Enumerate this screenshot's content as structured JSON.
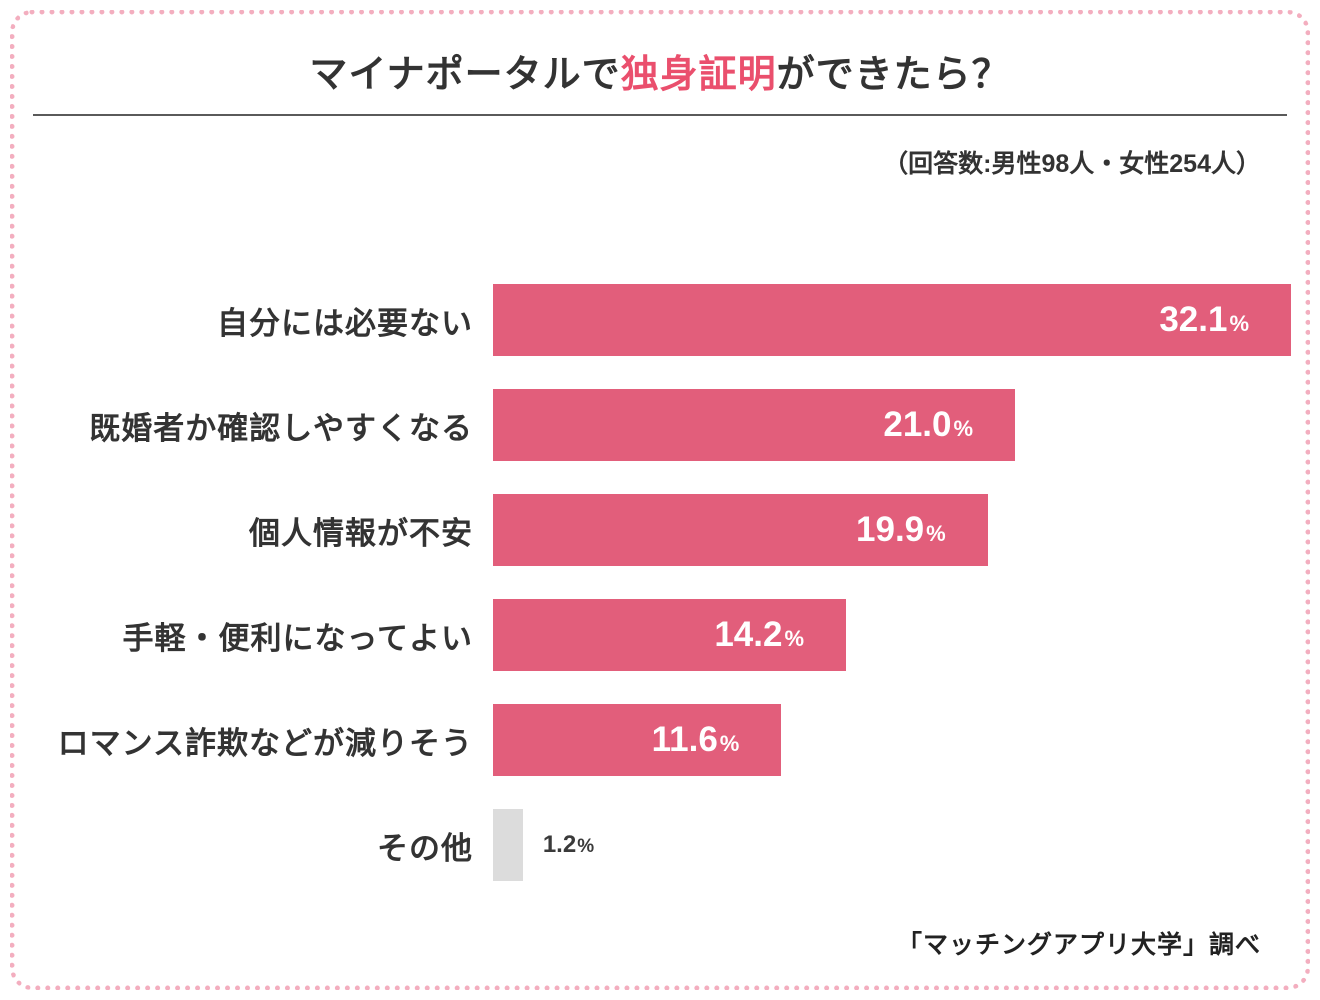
{
  "page": {
    "title_prefix": "マイナポータルで",
    "title_highlight": "独身証明",
    "title_suffix": "ができたら？",
    "subtitle": "（回答数:男性98人・女性254人）",
    "source": "「マッチングアプリ大学」調べ",
    "highlight_color": "#ea4f6d",
    "bar_color": "#e25e7b",
    "muted_bar_color": "#dcdcdc"
  },
  "chart_data": {
    "type": "bar",
    "orientation": "horizontal",
    "title": "マイナポータルで独身証明ができたら？",
    "subtitle": "（回答数:男性98人・女性254人）",
    "source": "「マッチングアプリ大学」調べ",
    "categories": [
      "自分には必要ない",
      "既婚者か確認しやすくなる",
      "個人情報が不安",
      "手軽・便利になってよい",
      "ロマンス詐欺などが減りそう",
      "その他"
    ],
    "values": [
      32.1,
      21.0,
      19.9,
      14.2,
      11.6,
      1.2
    ],
    "unit": "%",
    "bar_colors": [
      "#e25e7b",
      "#e25e7b",
      "#e25e7b",
      "#e25e7b",
      "#e25e7b",
      "#dcdcdc"
    ],
    "xlim": [
      0,
      32.1
    ],
    "grid": false,
    "legend": false,
    "value_label_position": "inside-right (outside for その他)"
  }
}
